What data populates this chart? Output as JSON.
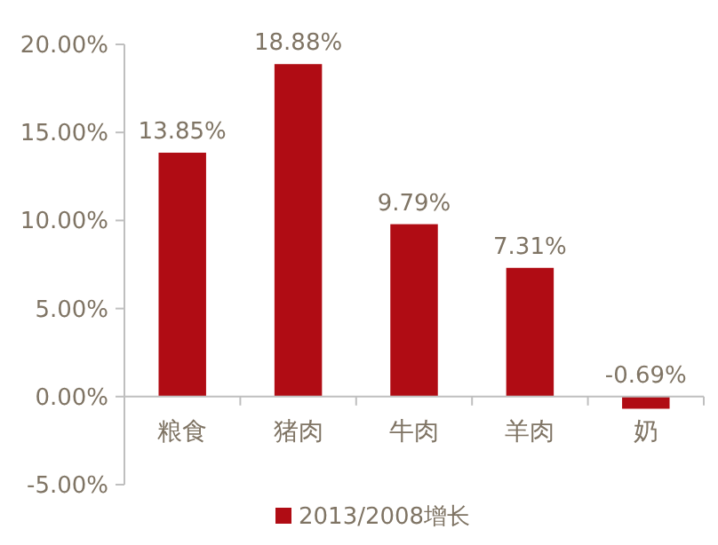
{
  "chart_data": {
    "type": "bar",
    "categories": [
      "粮食",
      "猪肉",
      "牛肉",
      "羊肉",
      "奶"
    ],
    "series": [
      {
        "name": "2013/2008增长",
        "color": "#b00c14",
        "values": [
          13.85,
          18.88,
          9.79,
          7.31,
          -0.69
        ],
        "value_labels": [
          "13.85%",
          "18.88%",
          "9.79%",
          "7.31%",
          "-0.69%"
        ]
      }
    ],
    "ylim": [
      -5,
      20
    ],
    "yticks": [
      {
        "value": -5,
        "label": "-5.00%"
      },
      {
        "value": 0,
        "label": "0.00%"
      },
      {
        "value": 5,
        "label": "5.00%"
      },
      {
        "value": 10,
        "label": "10.00%"
      },
      {
        "value": 15,
        "label": "15.00%"
      },
      {
        "value": 20,
        "label": "20.00%"
      }
    ],
    "grid": false,
    "legend": "bottom"
  }
}
